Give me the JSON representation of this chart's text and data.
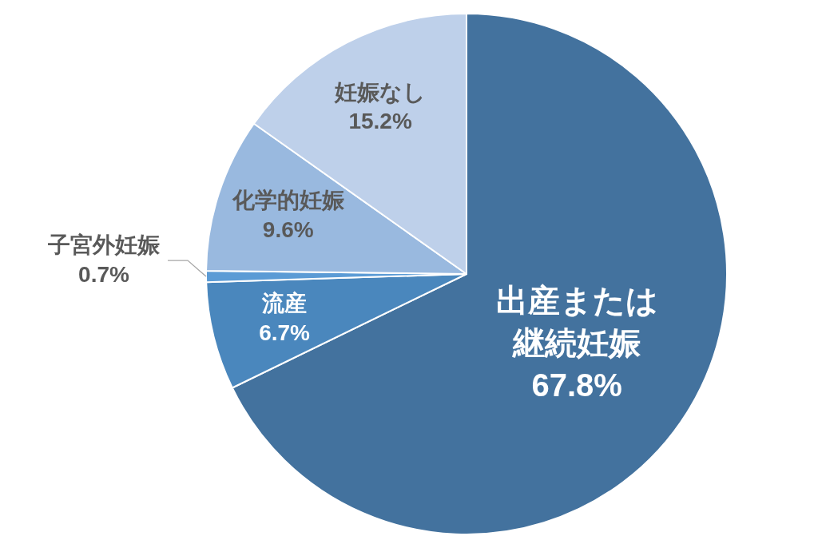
{
  "chart_data": {
    "type": "pie",
    "categories": [
      "出産または継続妊娠",
      "流産",
      "子宮外妊娠",
      "化学的妊娠",
      "妊娠なし"
    ],
    "values": [
      67.8,
      6.7,
      0.7,
      9.6,
      15.2
    ],
    "colors": [
      "#43729e",
      "#4a87bd",
      "#5b9bd5",
      "#99b9df",
      "#bed0ea"
    ],
    "value_labels": [
      "67.8%",
      "6.7%",
      "0.7%",
      "9.6%",
      "15.2%"
    ]
  }
}
